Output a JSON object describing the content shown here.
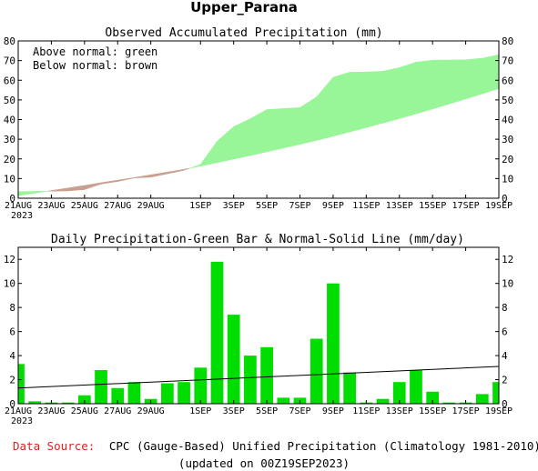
{
  "title": "Upper_Parana",
  "footer": {
    "source_label": "Data Source:",
    "source_text": "CPC (Gauge-Based) Unified Precipitation (Climatology 1981-2010)",
    "updated": "(updated on 00Z19SEP2023)"
  },
  "colors": {
    "above": "#98f598",
    "below": "#c8a090",
    "bar": "#00dd00",
    "source_label": "#e02020"
  },
  "chart_data": [
    {
      "type": "area",
      "title": "Observed Accumulated Precipitation (mm)",
      "legend_lines": [
        "Above normal: green",
        "Below normal: brown"
      ],
      "legend_placement": "top-left",
      "ylim": [
        0,
        80
      ],
      "y_ticks": [
        0,
        10,
        20,
        30,
        40,
        50,
        60,
        70,
        80
      ],
      "x_tick_labels": [
        "21AUG",
        "23AUG",
        "25AUG",
        "27AUG",
        "29AUG",
        "1SEP",
        "3SEP",
        "5SEP",
        "7SEP",
        "9SEP",
        "11SEP",
        "13SEP",
        "15SEP",
        "17SEP",
        "19SEP"
      ],
      "x_tick_days": [
        0,
        2,
        4,
        6,
        8,
        11,
        13,
        15,
        17,
        19,
        21,
        23,
        25,
        27,
        29
      ],
      "year_label": "2023",
      "x_days": [
        0,
        1,
        2,
        3,
        4,
        5,
        6,
        7,
        8,
        9,
        10,
        11,
        12,
        13,
        14,
        15,
        16,
        17,
        18,
        19,
        20,
        21,
        22,
        23,
        24,
        25,
        26,
        27,
        28,
        29
      ],
      "series": [
        {
          "role": "observed",
          "values": [
            3.3,
            3.5,
            3.6,
            3.7,
            4.4,
            7.2,
            8.5,
            10.3,
            10.7,
            12.4,
            14.2,
            17.2,
            29.0,
            36.4,
            40.4,
            45.1,
            45.6,
            46.1,
            51.5,
            61.5,
            64.1,
            64.2,
            64.6,
            66.4,
            69.2,
            70.2,
            70.3,
            70.4,
            71.2,
            73.0
          ]
        },
        {
          "role": "normal",
          "values": [
            1.3,
            2.6,
            3.9,
            5.2,
            6.5,
            7.9,
            9.2,
            10.5,
            11.9,
            13.3,
            14.7,
            16.3,
            18.1,
            19.9,
            21.7,
            23.6,
            25.5,
            27.4,
            29.4,
            31.5,
            33.7,
            35.9,
            38.2,
            40.5,
            42.9,
            45.4,
            47.9,
            50.5,
            53.1,
            55.8
          ]
        }
      ]
    },
    {
      "type": "bar",
      "title": "Daily Precipitation-Green Bar & Normal-Solid Line (mm/day)",
      "ylim": [
        0,
        13
      ],
      "y_ticks": [
        0,
        2,
        4,
        6,
        8,
        10,
        12
      ],
      "x_tick_labels": [
        "21AUG",
        "23AUG",
        "25AUG",
        "27AUG",
        "29AUG",
        "1SEP",
        "3SEP",
        "5SEP",
        "7SEP",
        "9SEP",
        "11SEP",
        "13SEP",
        "15SEP",
        "17SEP",
        "19SEP"
      ],
      "x_tick_days": [
        0,
        2,
        4,
        6,
        8,
        11,
        13,
        15,
        17,
        19,
        21,
        23,
        25,
        27,
        29
      ],
      "year_label": "2023",
      "x_days": [
        0,
        1,
        2,
        3,
        4,
        5,
        6,
        7,
        8,
        9,
        10,
        11,
        12,
        13,
        14,
        15,
        16,
        17,
        18,
        19,
        20,
        21,
        22,
        23,
        24,
        25,
        26,
        27,
        28,
        29
      ],
      "values": [
        3.3,
        0.2,
        0.1,
        0.1,
        0.7,
        2.8,
        1.3,
        1.8,
        0.4,
        1.7,
        1.8,
        3.0,
        11.8,
        7.4,
        4.0,
        4.7,
        0.5,
        0.5,
        5.4,
        10.0,
        2.6,
        0.1,
        0.4,
        1.8,
        2.8,
        1.0,
        0.1,
        0.1,
        0.8,
        1.8
      ],
      "normal_line": {
        "start": 1.3,
        "end": 3.1
      }
    }
  ]
}
